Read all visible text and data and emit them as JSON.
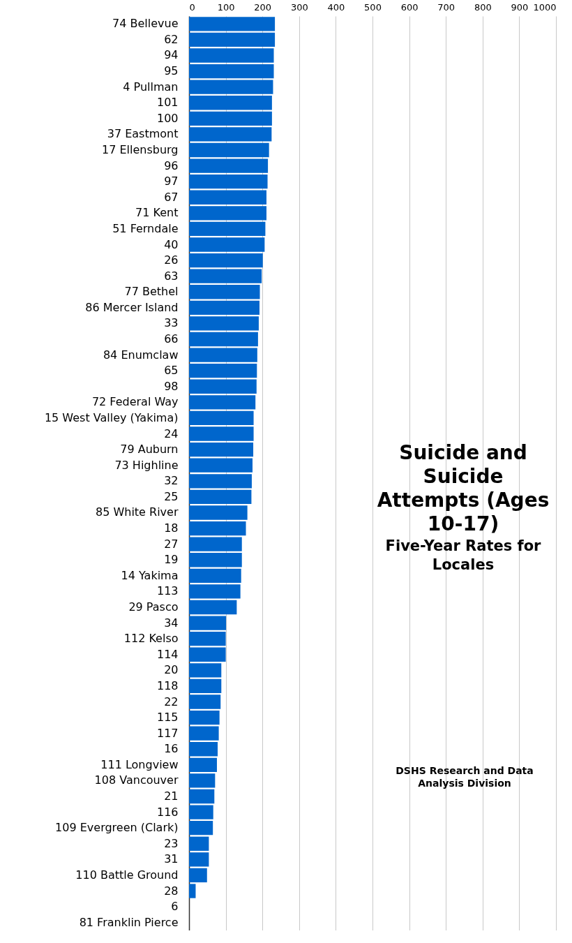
{
  "chart_data": {
    "type": "bar",
    "orientation": "horizontal",
    "title": "Suicide and Suicide Attempts (Ages 10-17)",
    "subtitle": "Five-Year Rates for Locales",
    "annotations": [
      "DSHS Research and Data Analysis Division"
    ],
    "categories": [
      "74 Bellevue",
      "62",
      "94",
      "95",
      "4 Pullman",
      "101",
      "100",
      "37 Eastmont",
      "17 Ellensburg",
      "96",
      "97",
      "67",
      "71 Kent",
      "51 Ferndale",
      "40",
      "26",
      "63",
      "77 Bethel",
      "86 Mercer Island",
      "33",
      "66",
      "84 Enumclaw",
      "65",
      "98",
      "72 Federal Way",
      "15 West Valley (Yakima)",
      "24",
      "79 Auburn",
      "73 Highline",
      "32",
      "25",
      "85 White River",
      "18",
      "27",
      "19",
      "14 Yakima",
      "113",
      "29 Pasco",
      "34",
      "112 Kelso",
      "114",
      "20",
      "118",
      "22",
      "115",
      "117",
      "16",
      "111 Longview",
      "108 Vancouver",
      "21",
      "116",
      "109 Evergreen (Clark)",
      "23",
      "31",
      "110 Battle Ground",
      "28",
      "6",
      "81 Franklin Pierce"
    ],
    "values": [
      234,
      234,
      231,
      231,
      229,
      226,
      226,
      225,
      218,
      215,
      214,
      211,
      211,
      208,
      206,
      201,
      198,
      193,
      192,
      190,
      188,
      186,
      185,
      184,
      181,
      176,
      176,
      175,
      173,
      171,
      170,
      159,
      155,
      144,
      144,
      142,
      140,
      130,
      101,
      100,
      100,
      88,
      88,
      86,
      83,
      81,
      78,
      76,
      71,
      69,
      66,
      65,
      54,
      54,
      49,
      18,
      0,
      0
    ],
    "color": "#0066cc",
    "xlim": [
      0,
      1000
    ],
    "xticks": [
      0,
      100,
      200,
      300,
      400,
      500,
      600,
      700,
      800,
      900,
      1000
    ],
    "grid": "x"
  }
}
